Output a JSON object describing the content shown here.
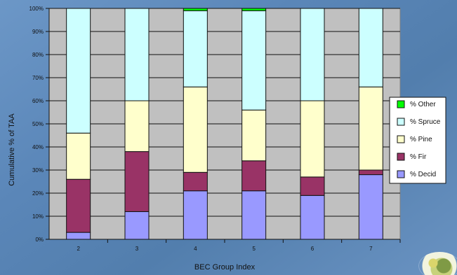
{
  "chart_data": {
    "type": "bar",
    "stacked": true,
    "categories": [
      "2",
      "3",
      "4",
      "5",
      "6",
      "7"
    ],
    "series": [
      {
        "name": "% Decid",
        "values": [
          3,
          12,
          21,
          21,
          19,
          28
        ],
        "color": "#9999ff"
      },
      {
        "name": "% Fir",
        "values": [
          23,
          26,
          8,
          13,
          8,
          2
        ],
        "color": "#993366"
      },
      {
        "name": "% Pine",
        "values": [
          20,
          22,
          37,
          22,
          33,
          36
        ],
        "color": "#ffffcc"
      },
      {
        "name": "% Spruce",
        "values": [
          54,
          40,
          33,
          43,
          40,
          34
        ],
        "color": "#ccffff"
      },
      {
        "name": "% Other",
        "values": [
          0,
          0,
          1,
          1,
          0,
          0
        ],
        "color": "#00ff00"
      }
    ],
    "xlabel": "BEC Group Index",
    "ylabel": "Cumulative % of TAA",
    "ylim": [
      0,
      100
    ],
    "yticks": [
      "0%",
      "10%",
      "20%",
      "30%",
      "40%",
      "50%",
      "60%",
      "70%",
      "80%",
      "90%",
      "100%"
    ],
    "legend": {
      "placement": "right",
      "entries": [
        "% Other",
        "% Spruce",
        "% Pine",
        "% Fir",
        "% Decid"
      ]
    },
    "grid": true,
    "plot_background": "#c0c0c0"
  },
  "logo": {
    "icon": "forest-emblem-icon"
  }
}
